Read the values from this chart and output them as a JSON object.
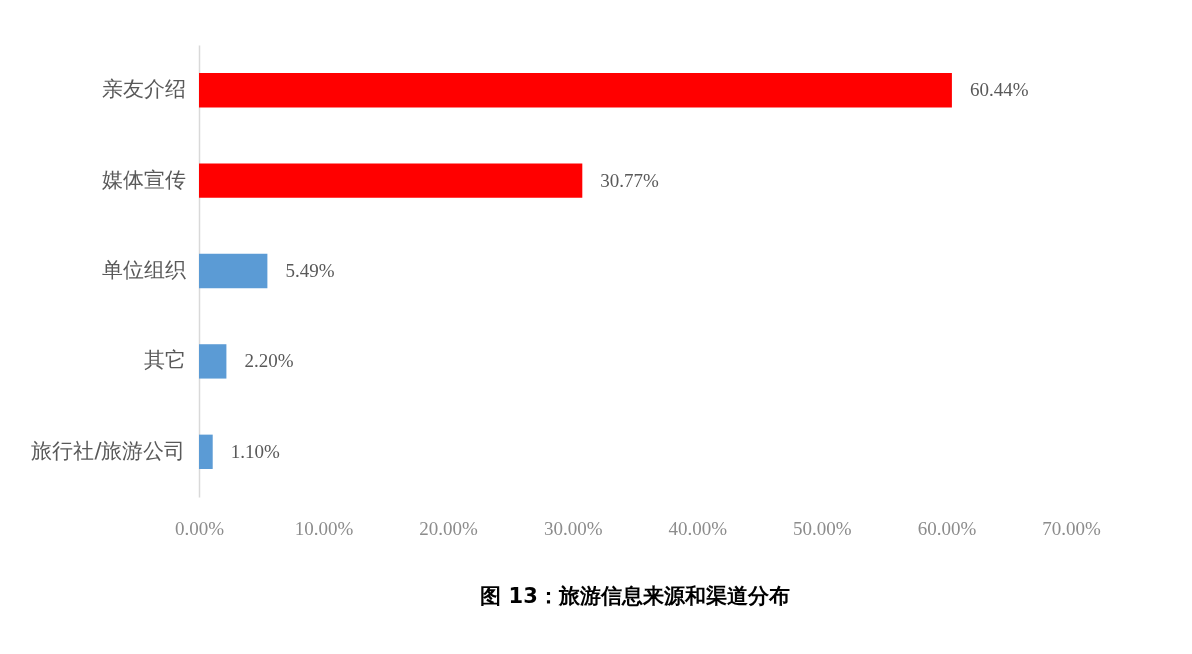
{
  "chart_data": {
    "type": "bar",
    "orientation": "horizontal",
    "title": "图 13：旅游信息来源和渠道分布",
    "categories": [
      "亲友介绍",
      "媒体宣传",
      "单位组织",
      "其它",
      "旅行社/旅游公司"
    ],
    "values": [
      60.44,
      30.77,
      5.49,
      2.2,
      1.1
    ],
    "colors": [
      "#ff0000",
      "#ff0000",
      "#5b9bd5",
      "#5b9bd5",
      "#5b9bd5"
    ],
    "value_labels": [
      "60.44%",
      "30.77%",
      "5.49%",
      "2.20%",
      "1.10%"
    ],
    "xlim": [
      0,
      70
    ],
    "xticks": [
      {
        "value": 0,
        "label": "0.00%"
      },
      {
        "value": 10,
        "label": "10.00%"
      },
      {
        "value": 20,
        "label": "20.00%"
      },
      {
        "value": 30,
        "label": "30.00%"
      },
      {
        "value": 40,
        "label": "40.00%"
      },
      {
        "value": 50,
        "label": "50.00%"
      },
      {
        "value": 60,
        "label": "60.00%"
      },
      {
        "value": 70,
        "label": "70.00%"
      }
    ],
    "grid": false
  }
}
